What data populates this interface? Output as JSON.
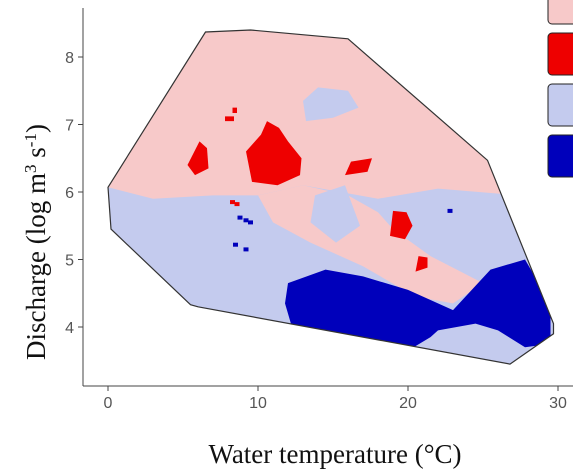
{
  "chart_data": {
    "type": "heatmap",
    "title": "",
    "xlabel": "Water temperature (°C)",
    "ylabel": "Discharge (log m³ s⁻¹)",
    "ylabel_parts": {
      "base": "Discharge (log m",
      "sup1": "3",
      "mid": " s",
      "sup2": "-1",
      "end": ")"
    },
    "xlim": [
      -1.5,
      30.5
    ],
    "ylim": [
      3.4,
      8.7
    ],
    "xticks": [
      0,
      10,
      20,
      30
    ],
    "yticks": [
      4,
      5,
      6,
      7,
      8
    ],
    "grid": false,
    "legend": "top-right, partially cropped (colour swatches only, labels not visible)",
    "categories": [
      {
        "color": "#f7c9c9"
      },
      {
        "color": "#ee0000"
      },
      {
        "color": "#c4cbee"
      },
      {
        "color": "#0000bb"
      }
    ],
    "boundary": [
      [
        0,
        6.07
      ],
      [
        6.5,
        8.37
      ],
      [
        9.5,
        8.4
      ],
      [
        16,
        8.27
      ],
      [
        25.3,
        6.47
      ],
      [
        29.7,
        4.05
      ],
      [
        29.7,
        3.9
      ],
      [
        26.8,
        3.45
      ],
      [
        6,
        4.3
      ],
      [
        5.5,
        4.33
      ],
      [
        0.2,
        5.45
      ]
    ],
    "regions": [
      {
        "category": 2,
        "points": [
          [
            0,
            6.07
          ],
          [
            3,
            5.9
          ],
          [
            7,
            5.95
          ],
          [
            10,
            5.95
          ],
          [
            13,
            6.1
          ],
          [
            18,
            5.9
          ],
          [
            22,
            6.05
          ],
          [
            27.5,
            5.95
          ],
          [
            29.7,
            4.05
          ],
          [
            29.7,
            3.9
          ],
          [
            26.8,
            3.45
          ],
          [
            6,
            4.3
          ],
          [
            5.5,
            4.33
          ],
          [
            0.2,
            5.45
          ]
        ]
      },
      {
        "category": 0,
        "points": [
          [
            10,
            5.95
          ],
          [
            13,
            6.1
          ],
          [
            16,
            5.95
          ],
          [
            18,
            5.7
          ],
          [
            19,
            5.45
          ],
          [
            21.5,
            5.05
          ],
          [
            25,
            4.65
          ],
          [
            23,
            4.35
          ],
          [
            20.5,
            4.45
          ],
          [
            17,
            4.9
          ],
          [
            13.5,
            5.25
          ],
          [
            11,
            5.55
          ]
        ]
      },
      {
        "category": 2,
        "points": [
          [
            13.8,
            5.95
          ],
          [
            15.8,
            6.1
          ],
          [
            16.8,
            5.5
          ],
          [
            15.2,
            5.25
          ],
          [
            13.5,
            5.55
          ]
        ]
      },
      {
        "category": 2,
        "points": [
          [
            20.5,
            5.9
          ],
          [
            22.3,
            6.0
          ],
          [
            22.4,
            5.6
          ],
          [
            21.0,
            5.5
          ]
        ]
      },
      {
        "category": 2,
        "points": [
          [
            13.2,
            7.05
          ],
          [
            15,
            7.1
          ],
          [
            16.7,
            7.25
          ],
          [
            16,
            7.5
          ],
          [
            14,
            7.55
          ],
          [
            13.0,
            7.35
          ]
        ]
      },
      {
        "category": 3,
        "points": [
          [
            12,
            4.65
          ],
          [
            14.5,
            4.85
          ],
          [
            17,
            4.75
          ],
          [
            20,
            4.55
          ],
          [
            23,
            4.25
          ],
          [
            25.5,
            4.85
          ],
          [
            27.8,
            5.0
          ],
          [
            29.5,
            4.35
          ],
          [
            29.5,
            3.75
          ],
          [
            27.8,
            3.7
          ],
          [
            26,
            3.95
          ],
          [
            24.5,
            4.05
          ],
          [
            22,
            3.95
          ],
          [
            21.5,
            3.85
          ],
          [
            20,
            3.65
          ],
          [
            18.5,
            3.7
          ],
          [
            17,
            3.75
          ],
          [
            15,
            3.72
          ],
          [
            12.3,
            3.97
          ],
          [
            11.8,
            4.35
          ]
        ]
      },
      {
        "category": 1,
        "points": [
          [
            5.3,
            6.4
          ],
          [
            6.1,
            6.75
          ],
          [
            6.6,
            6.65
          ],
          [
            6.7,
            6.35
          ],
          [
            5.8,
            6.25
          ]
        ]
      },
      {
        "category": 1,
        "points": [
          [
            9.6,
            6.15
          ],
          [
            11.3,
            6.1
          ],
          [
            12.8,
            6.25
          ],
          [
            12.9,
            6.5
          ],
          [
            12,
            6.75
          ],
          [
            11.4,
            6.95
          ],
          [
            10.6,
            7.05
          ],
          [
            10.2,
            6.85
          ],
          [
            9.2,
            6.6
          ]
        ]
      },
      {
        "category": 1,
        "points": [
          [
            15.8,
            6.25
          ],
          [
            17.3,
            6.3
          ],
          [
            17.6,
            6.5
          ],
          [
            16.2,
            6.45
          ]
        ]
      },
      {
        "category": 1,
        "points": [
          [
            18.8,
            5.35
          ],
          [
            19.8,
            5.3
          ],
          [
            20.3,
            5.5
          ],
          [
            19.9,
            5.7
          ],
          [
            19.0,
            5.72
          ]
        ]
      },
      {
        "category": 1,
        "points": [
          [
            20.5,
            4.82
          ],
          [
            21.3,
            4.88
          ],
          [
            21.3,
            5.03
          ],
          [
            20.7,
            5.05
          ]
        ]
      },
      {
        "category": 1,
        "points": [
          [
            7.8,
            7.05
          ],
          [
            8.4,
            7.05
          ],
          [
            8.4,
            7.12
          ],
          [
            7.8,
            7.12
          ]
        ]
      },
      {
        "category": 1,
        "points": [
          [
            8.3,
            7.17
          ],
          [
            8.6,
            7.17
          ],
          [
            8.6,
            7.25
          ],
          [
            8.3,
            7.25
          ]
        ]
      }
    ],
    "dots": [
      {
        "category": 3,
        "points": [
          [
            8.8,
            5.62
          ],
          [
            9.2,
            5.58
          ],
          [
            9.5,
            5.55
          ],
          [
            8.5,
            5.22
          ],
          [
            9.2,
            5.15
          ],
          [
            22.8,
            5.72
          ]
        ]
      },
      {
        "category": 1,
        "points": [
          [
            8.3,
            5.85
          ],
          [
            8.6,
            5.82
          ]
        ]
      }
    ]
  }
}
